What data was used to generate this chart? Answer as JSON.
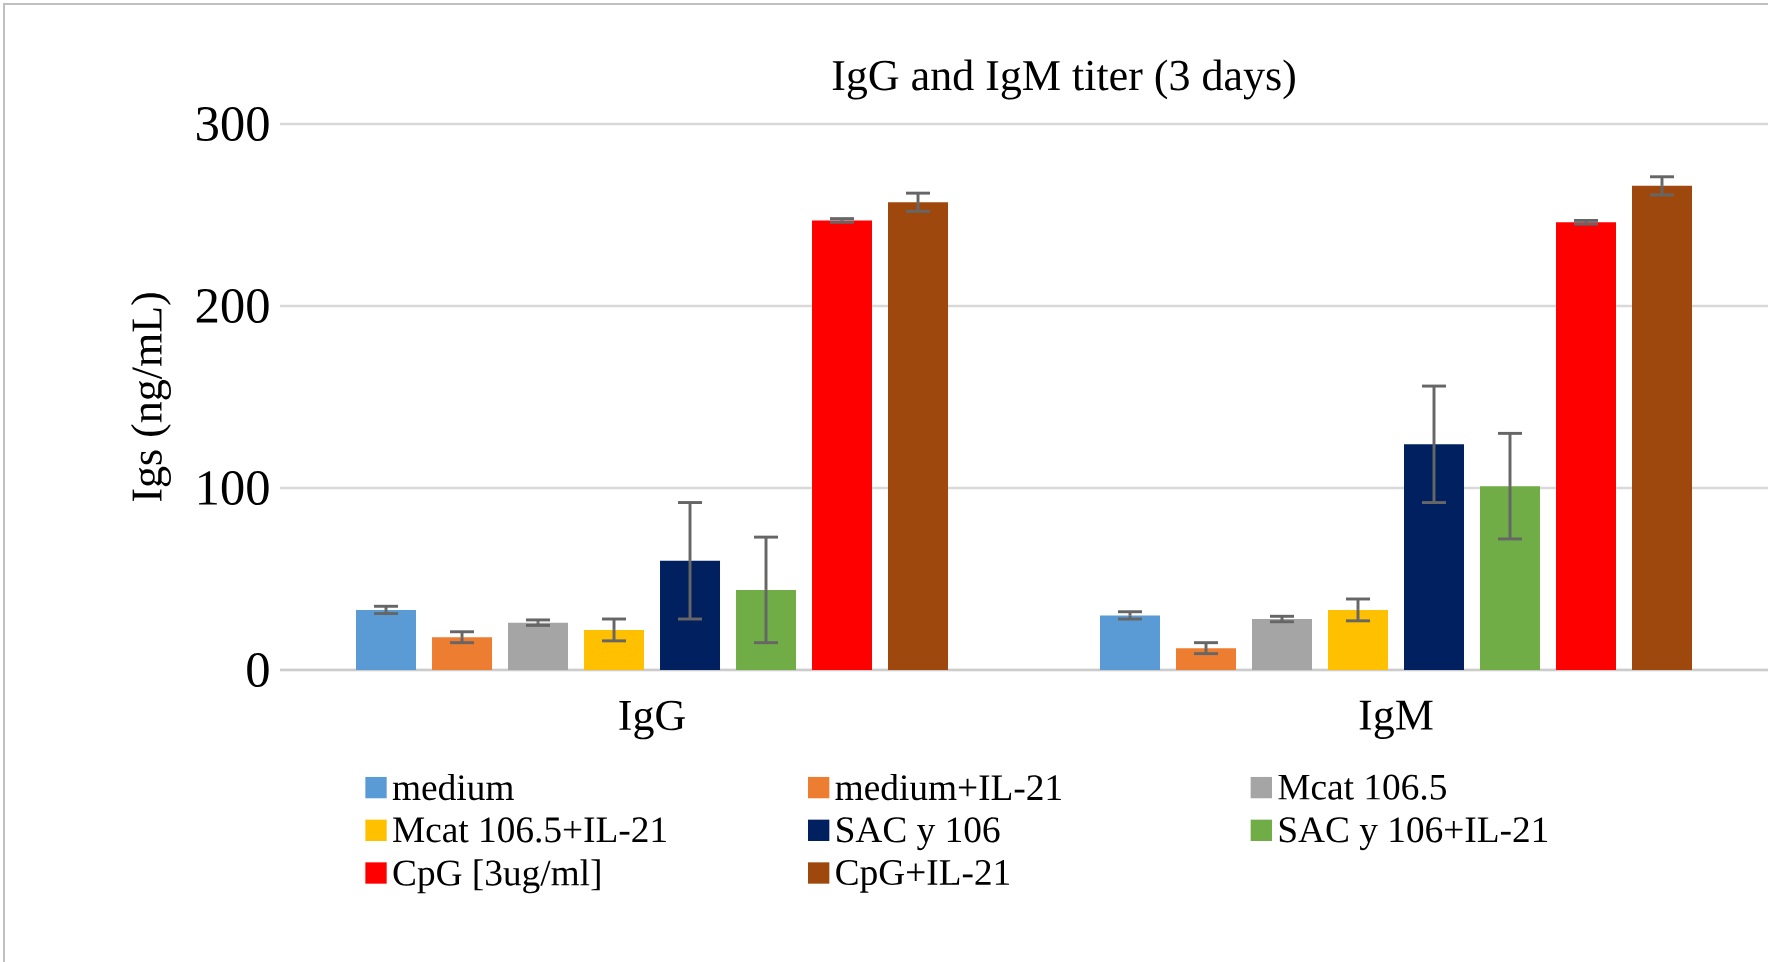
{
  "chart_data": {
    "type": "bar",
    "title": "IgG and IgM titer (3 days)",
    "ylabel": "Igs (ng/mL)",
    "categories": [
      "IgG",
      "IgM"
    ],
    "ylim": [
      0,
      300
    ],
    "yticks": [
      0,
      100,
      200,
      300
    ],
    "grid": "y",
    "legend": "bottom",
    "series": [
      {
        "name": "medium",
        "color": "#5b9bd5",
        "values": [
          33,
          30
        ],
        "errors": [
          2,
          2
        ]
      },
      {
        "name": "medium+IL-21",
        "color": "#ed7d31",
        "values": [
          18,
          12
        ],
        "errors": [
          3,
          3
        ]
      },
      {
        "name": "Mcat 106.5",
        "color": "#a5a5a5",
        "values": [
          26,
          28
        ],
        "errors": [
          1.5,
          1.5
        ]
      },
      {
        "name": "Mcat 106.5+IL-21",
        "color": "#ffc000",
        "values": [
          22,
          33
        ],
        "errors": [
          6,
          6
        ]
      },
      {
        "name": "SAC y 106",
        "color": "#002060",
        "values": [
          60,
          124
        ],
        "errors": [
          32,
          32
        ]
      },
      {
        "name": "SAC y 106+IL-21",
        "color": "#70ad47",
        "values": [
          44,
          101
        ],
        "errors": [
          29,
          29
        ]
      },
      {
        "name": "CpG [3ug/ml]",
        "color": "#ff0000",
        "values": [
          247,
          246
        ],
        "errors": [
          1,
          1
        ]
      },
      {
        "name": "CpG+IL-21",
        "color": "#9e480e",
        "values": [
          257,
          266
        ],
        "errors": [
          5,
          5
        ]
      }
    ]
  }
}
